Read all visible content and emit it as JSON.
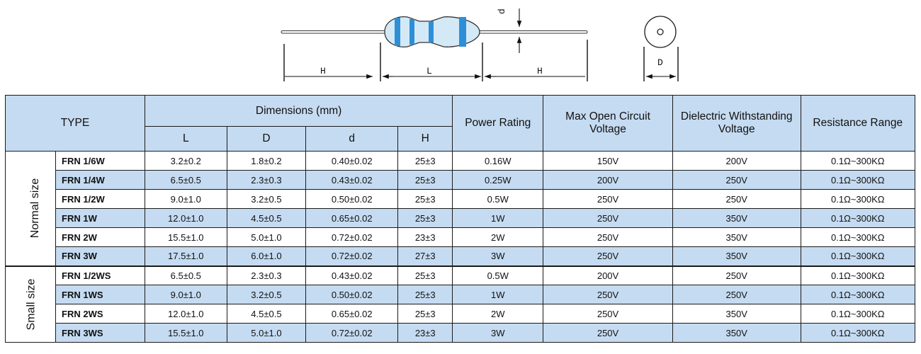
{
  "diagram": {
    "labels": {
      "h_left": "H",
      "l": "L",
      "h_right": "H",
      "d_small": "d",
      "d_big": "D"
    },
    "band_color": "#2e8fd6",
    "body_color": "#d4e9f6"
  },
  "table": {
    "header": {
      "type": "TYPE",
      "dimensions": "Dimensions (mm)",
      "sub": [
        "L",
        "D",
        "d",
        "H"
      ],
      "power": "Power Rating",
      "max_open_circuit_voltage": "Max Open Circuit Voltage",
      "dielectric": "Dielectric Withstanding Voltage",
      "resistance": "Resistance Range"
    },
    "groups": [
      {
        "label": "Normal size",
        "rows": [
          [
            "FRN 1/6W",
            "3.2±0.2",
            "1.8±0.2",
            "0.40±0.02",
            "25±3",
            "0.16W",
            "150V",
            "200V",
            "0.1Ω~300KΩ"
          ],
          [
            "FRN 1/4W",
            "6.5±0.5",
            "2.3±0.3",
            "0.43±0.02",
            "25±3",
            "0.25W",
            "200V",
            "250V",
            "0.1Ω~300KΩ"
          ],
          [
            "FRN 1/2W",
            "9.0±1.0",
            "3.2±0.5",
            "0.50±0.02",
            "25±3",
            "0.5W",
            "250V",
            "250V",
            "0.1Ω~300KΩ"
          ],
          [
            "FRN 1W",
            "12.0±1.0",
            "4.5±0.5",
            "0.65±0.02",
            "25±3",
            "1W",
            "250V",
            "350V",
            "0.1Ω~300KΩ"
          ],
          [
            "FRN 2W",
            "15.5±1.0",
            "5.0±1.0",
            "0.72±0.02",
            "23±3",
            "2W",
            "250V",
            "350V",
            "0.1Ω~300KΩ"
          ],
          [
            "FRN 3W",
            "17.5±1.0",
            "6.0±1.0",
            "0.72±0.02",
            "27±3",
            "3W",
            "250V",
            "350V",
            "0.1Ω~300KΩ"
          ]
        ]
      },
      {
        "label": "Small size",
        "rows": [
          [
            "FRN 1/2WS",
            "6.5±0.5",
            "2.3±0.3",
            "0.43±0.02",
            "25±3",
            "0.5W",
            "200V",
            "250V",
            "0.1Ω~300KΩ"
          ],
          [
            "FRN 1WS",
            "9.0±1.0",
            "3.2±0.5",
            "0.50±0.02",
            "25±3",
            "1W",
            "250V",
            "250V",
            "0.1Ω~300KΩ"
          ],
          [
            "FRN 2WS",
            "12.0±1.0",
            "4.5±0.5",
            "0.65±0.02",
            "25±3",
            "2W",
            "250V",
            "350V",
            "0.1Ω~300KΩ"
          ],
          [
            "FRN 3WS",
            "15.5±1.0",
            "5.0±1.0",
            "0.72±0.02",
            "23±3",
            "3W",
            "250V",
            "350V",
            "0.1Ω~300KΩ"
          ]
        ]
      }
    ]
  }
}
